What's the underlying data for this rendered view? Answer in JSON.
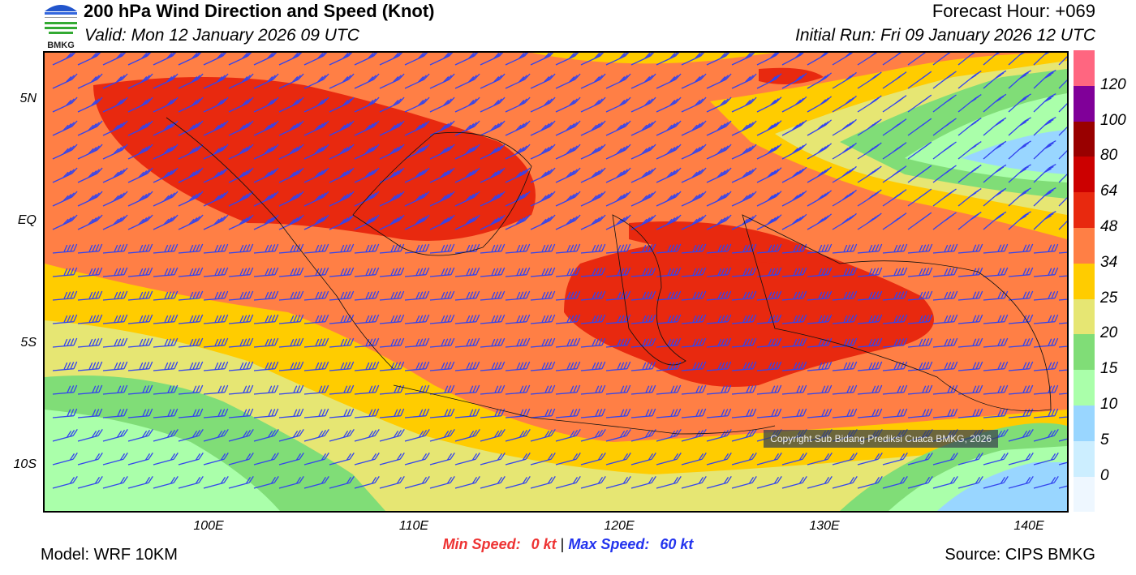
{
  "header": {
    "title": "200 hPa Wind Direction and Speed (Knot)",
    "valid": "Valid: Mon 12 January 2026 09 UTC",
    "forecast_hour": "Forecast Hour: +069",
    "initial_run": "Initial Run: Fri 09 January 2026 12 UTC",
    "logo_text": "BMKG"
  },
  "map": {
    "lat_labels": [
      "5N",
      "EQ",
      "5S",
      "10S"
    ],
    "lon_labels": [
      "100E",
      "110E",
      "120E",
      "130E",
      "140E"
    ],
    "copyright": "Copyright Sub Bidang Prediksi Cuaca BMKG, 2026",
    "barb_color": "#3344ee"
  },
  "colorbar": {
    "labels": [
      "120",
      "100",
      "80",
      "64",
      "48",
      "34",
      "25",
      "20",
      "15",
      "10",
      "5",
      "0"
    ],
    "colors": [
      "#ff6680",
      "#800099",
      "#990000",
      "#cc0000",
      "#e8290f",
      "#ff7f45",
      "#ffcc00",
      "#e6e673",
      "#80dd77",
      "#aaffaa",
      "#99d6ff",
      "#cceeff",
      "#eef7ff"
    ]
  },
  "footer": {
    "min_label": "Min Speed:",
    "min_value": "0 kt",
    "separator": "|",
    "max_label": "Max Speed:",
    "max_value": "60 kt",
    "model": "Model: WRF 10KM",
    "source": "Source: CIPS BMKG"
  }
}
